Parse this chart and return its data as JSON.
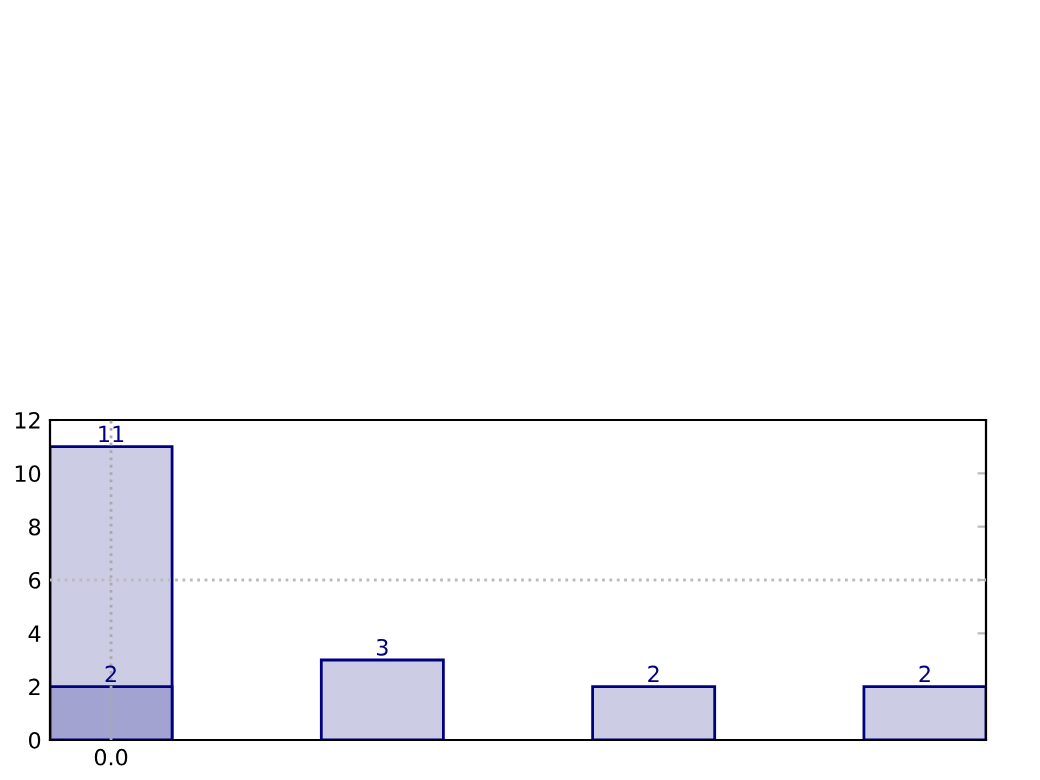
{
  "chart_data": {
    "type": "bar",
    "categories": [
      "0.0",
      null,
      null,
      null
    ],
    "series": [
      {
        "color": "#cccce5",
        "values": [
          11,
          3,
          2,
          2
        ]
      },
      {
        "color": "#a3a3d1",
        "values": [
          2,
          null,
          null,
          null
        ]
      }
    ],
    "ylim": [
      0,
      12
    ],
    "yticks": [
      0,
      2,
      4,
      6,
      8,
      10,
      12
    ],
    "ref_lines": [
      {
        "axis": "x",
        "value": "0.0",
        "color": "#aaaaaa",
        "line_style": "dotted"
      },
      {
        "axis": "y",
        "value": 6,
        "color": "#bbbbbb",
        "line_style": "dotted"
      }
    ],
    "data_labels": true,
    "grid": false,
    "legend": false
  }
}
